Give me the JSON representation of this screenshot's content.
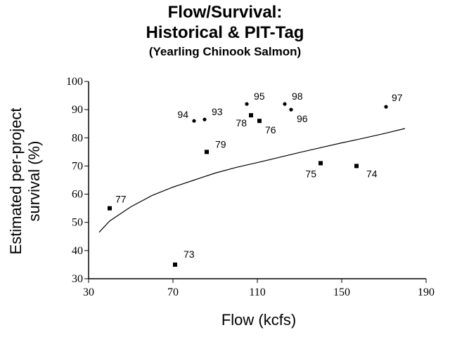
{
  "chart_data": {
    "type": "scatter",
    "title": "Flow/Survival:",
    "title_line2": "Historical & PIT-Tag",
    "subtitle": "(Yearling Chinook Salmon)",
    "xlabel": "Flow (kcfs)",
    "ylabel_line1": "Estimated per-project",
    "ylabel_line2": "survival (%)",
    "xlim": [
      30,
      190
    ],
    "ylim": [
      30,
      100
    ],
    "x_ticks": [
      "30",
      "70",
      "110",
      "150",
      "190"
    ],
    "y_ticks": [
      "30",
      "40",
      "50",
      "60",
      "70",
      "80",
      "90",
      "100"
    ],
    "grid": false,
    "series": [
      {
        "marker": "circle",
        "points": [
          {
            "label": "94",
            "x": 80,
            "y": 86
          },
          {
            "label": "93",
            "x": 85,
            "y": 86.5
          },
          {
            "label": "95",
            "x": 105,
            "y": 92
          },
          {
            "label": "98",
            "x": 123,
            "y": 92
          },
          {
            "label": "96",
            "x": 126,
            "y": 90
          },
          {
            "label": "97",
            "x": 171,
            "y": 91
          }
        ]
      },
      {
        "marker": "square",
        "points": [
          {
            "label": "77",
            "x": 40,
            "y": 55
          },
          {
            "label": "73",
            "x": 71,
            "y": 35
          },
          {
            "label": "79",
            "x": 86,
            "y": 75
          },
          {
            "label": "78",
            "x": 107,
            "y": 88
          },
          {
            "label": "76",
            "x": 111,
            "y": 86
          },
          {
            "label": "75",
            "x": 140,
            "y": 71
          },
          {
            "label": "74",
            "x": 157,
            "y": 70
          }
        ]
      }
    ],
    "fit_curve": {
      "x": [
        35,
        40,
        50,
        60,
        70,
        80,
        90,
        100,
        110,
        120,
        130,
        140,
        150,
        160,
        170,
        180
      ],
      "y": [
        46.5,
        50.5,
        55.5,
        59.5,
        62.5,
        65,
        67.5,
        69.5,
        71.2,
        73,
        74.8,
        76.5,
        78.2,
        79.8,
        81.5,
        83.3
      ]
    }
  }
}
